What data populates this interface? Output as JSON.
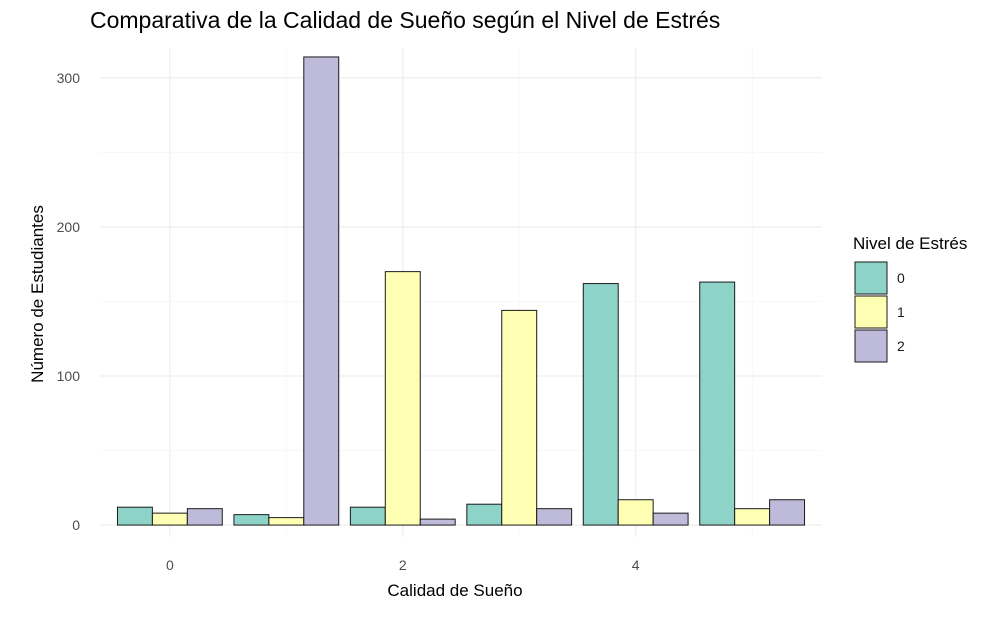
{
  "chart_data": {
    "type": "bar",
    "title": "Comparativa de la Calidad de Sueño según el Nivel de Estrés",
    "xlabel": "Calidad de Sueño",
    "ylabel": "Número de Estudiantes",
    "x": [
      0,
      1,
      2,
      3,
      4,
      5
    ],
    "xticks": [
      "0",
      "2",
      "4"
    ],
    "xtick_values": [
      0,
      2,
      4
    ],
    "yticks": [
      "0",
      "100",
      "200",
      "300"
    ],
    "ytick_values": [
      0,
      100,
      200,
      300
    ],
    "xlim": [
      -0.6,
      5.6
    ],
    "ylim": [
      -8,
      320
    ],
    "grid": true,
    "legend": {
      "title": "Nivel de Estrés",
      "position": "right"
    },
    "series": [
      {
        "name": "0",
        "color": "#8DD3C7",
        "values": [
          12,
          7,
          12,
          14,
          162,
          163
        ]
      },
      {
        "name": "1",
        "color": "#FFFFB3",
        "values": [
          8,
          5,
          170,
          144,
          17,
          11
        ]
      },
      {
        "name": "2",
        "color": "#BEBADA",
        "values": [
          11,
          314,
          4,
          11,
          8,
          17
        ]
      }
    ]
  }
}
